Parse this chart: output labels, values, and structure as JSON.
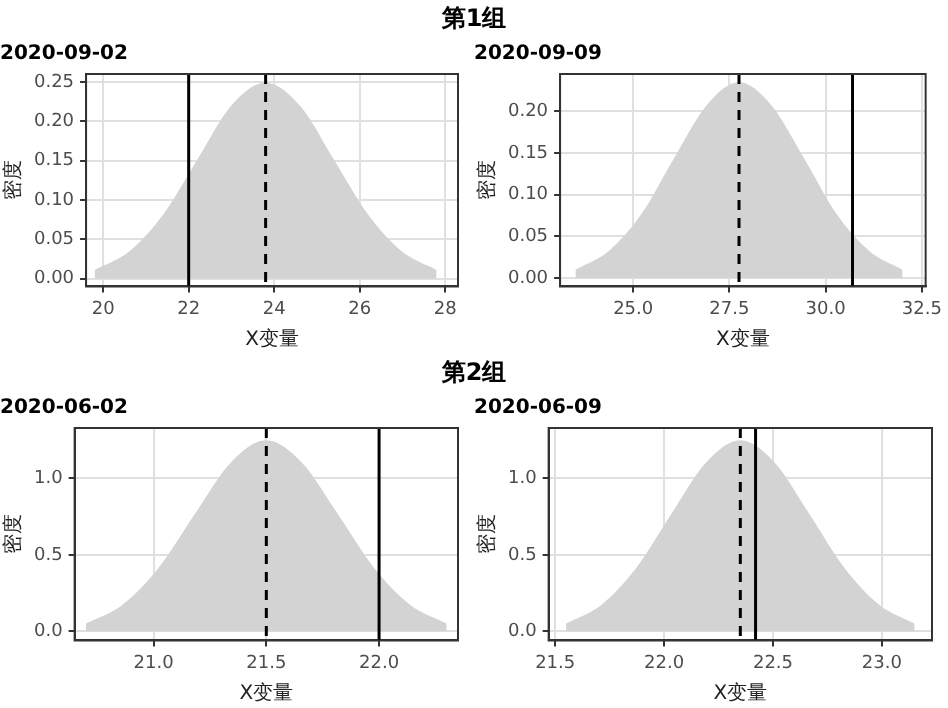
{
  "chart_data": [
    {
      "type": "area",
      "title": "第1组",
      "subtitle": "2020-09-02",
      "xlabel": "X变量",
      "ylabel": "密度",
      "color": "#d3d3d3",
      "grid": true,
      "x": [
        19.8,
        20.6,
        21.4,
        22.2,
        23.0,
        23.8,
        24.6,
        25.4,
        26.2,
        27.0,
        27.8
      ],
      "values": [
        0.011,
        0.034,
        0.081,
        0.151,
        0.22,
        0.249,
        0.22,
        0.151,
        0.081,
        0.034,
        0.011
      ],
      "xlim": [
        19.6,
        28.3
      ],
      "xticks": [
        20,
        22,
        24,
        26,
        28
      ],
      "ylim": [
        -0.01,
        0.26
      ],
      "yticks": [
        {
          "value": 0,
          "label": "0.00"
        },
        0.05,
        {
          "value": 0.1,
          "label": "0.10"
        },
        0.15,
        {
          "value": 0.2,
          "label": "0.20"
        },
        0.25
      ],
      "ref_lines": [
        {
          "axis": "x",
          "value": 22.0,
          "line_style": "solid",
          "color": "#000000"
        },
        {
          "axis": "x",
          "value": 23.8,
          "line_style": "dashed",
          "color": "#000000"
        }
      ]
    },
    {
      "type": "area",
      "subtitle": "2020-09-09",
      "xlabel": "X变量",
      "ylabel": "密度",
      "color": "#d3d3d3",
      "grid": true,
      "x": [
        23.5,
        24.35,
        25.2,
        26.05,
        26.9,
        27.75,
        28.6,
        29.45,
        30.3,
        31.15,
        32.0
      ],
      "values": [
        0.01,
        0.032,
        0.076,
        0.143,
        0.207,
        0.235,
        0.207,
        0.143,
        0.076,
        0.032,
        0.01
      ],
      "xlim": [
        23.1,
        32.6
      ],
      "xticks": [
        {
          "value": 25,
          "label": "25.0"
        },
        27.5,
        {
          "value": 30,
          "label": "30.0"
        },
        32.5
      ],
      "ylim": [
        -0.01,
        0.245
      ],
      "yticks": [
        {
          "value": 0,
          "label": "0.00"
        },
        0.05,
        {
          "value": 0.1,
          "label": "0.10"
        },
        0.15,
        {
          "value": 0.2,
          "label": "0.20"
        }
      ],
      "ref_lines": [
        {
          "axis": "x",
          "value": 27.75,
          "line_style": "dashed",
          "color": "#000000"
        },
        {
          "axis": "x",
          "value": 30.7,
          "line_style": "solid",
          "color": "#000000"
        }
      ]
    },
    {
      "type": "area",
      "title": "第2组",
      "subtitle": "2020-06-02",
      "xlabel": "X变量",
      "ylabel": "密度",
      "color": "#d3d3d3",
      "grid": true,
      "x": [
        20.7,
        20.86,
        21.02,
        21.18,
        21.34,
        21.5,
        21.66,
        21.82,
        21.98,
        22.14,
        22.3
      ],
      "values": [
        0.05,
        0.17,
        0.41,
        0.76,
        1.1,
        1.25,
        1.1,
        0.76,
        0.41,
        0.17,
        0.05
      ],
      "xlim": [
        20.65,
        22.35
      ],
      "xticks": [
        {
          "value": 21,
          "label": "21.0"
        },
        21.5,
        {
          "value": 22,
          "label": "22.0"
        }
      ],
      "ylim": [
        -0.06,
        1.33
      ],
      "yticks": [
        {
          "value": 0,
          "label": "0.0"
        },
        0.5,
        {
          "value": 1,
          "label": "1.0"
        }
      ],
      "ref_lines": [
        {
          "axis": "x",
          "value": 21.5,
          "line_style": "dashed",
          "color": "#000000"
        },
        {
          "axis": "x",
          "value": 22.0,
          "line_style": "solid",
          "color": "#000000"
        }
      ]
    },
    {
      "type": "area",
      "subtitle": "2020-06-09",
      "xlabel": "X变量",
      "ylabel": "密度",
      "color": "#d3d3d3",
      "grid": true,
      "x": [
        21.55,
        21.71,
        21.87,
        22.03,
        22.19,
        22.35,
        22.51,
        22.67,
        22.83,
        22.99,
        23.15
      ],
      "values": [
        0.05,
        0.17,
        0.41,
        0.76,
        1.1,
        1.25,
        1.1,
        0.76,
        0.41,
        0.17,
        0.05
      ],
      "xlim": [
        21.47,
        23.23
      ],
      "xticks": [
        21.5,
        {
          "value": 22,
          "label": "22.0"
        },
        22.5,
        {
          "value": 23,
          "label": "23.0"
        }
      ],
      "ylim": [
        -0.06,
        1.33
      ],
      "yticks": [
        {
          "value": 0,
          "label": "0.0"
        },
        0.5,
        {
          "value": 1,
          "label": "1.0"
        }
      ],
      "ref_lines": [
        {
          "axis": "x",
          "value": 22.35,
          "line_style": "dashed",
          "color": "#000000"
        },
        {
          "axis": "x",
          "value": 22.42,
          "line_style": "solid",
          "color": "#000000"
        }
      ]
    }
  ]
}
